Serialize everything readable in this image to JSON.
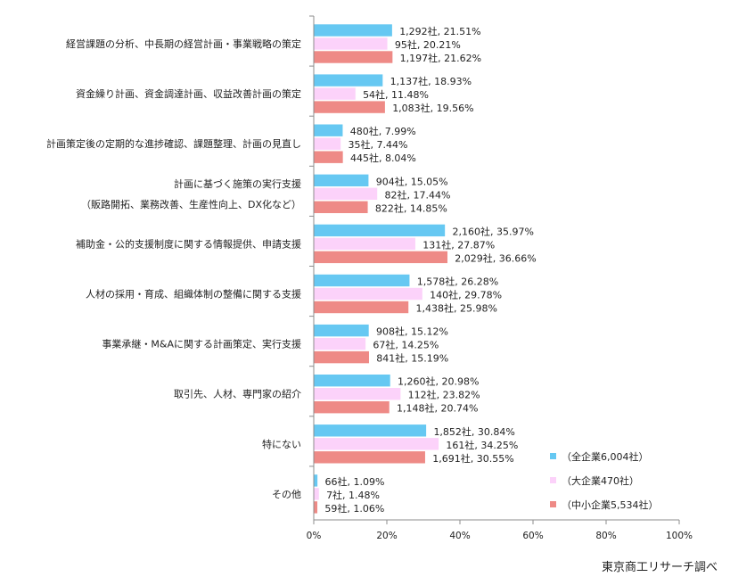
{
  "chart_data": {
    "type": "bar",
    "orientation": "horizontal",
    "categories": [
      "経営課題の分析、中長期の経営計画・事業戦略の策定",
      "資金繰り計画、資金調達計画、収益改善計画の策定",
      "計画策定後の定期的な進捗確認、課題整理、計画の見直し",
      "計画に基づく施策の実行支援\n（販路開拓、業務改善、生産性向上、DX化など）",
      "補助金・公的支援制度に関する情報提供、申請支援",
      "人材の採用・育成、組織体制の整備に関する支援",
      "事業承継・M&Aに関する計画策定、実行支援",
      "取引先、人材、専門家の紹介",
      "特にない",
      "その他"
    ],
    "series": [
      {
        "name": "（全企業6,004社）",
        "color": "#66c8f2",
        "values": [
          21.51,
          18.93,
          7.99,
          15.05,
          35.97,
          26.28,
          15.12,
          20.98,
          30.84,
          1.09
        ],
        "labels": [
          "1,292社, 21.51%",
          "1,137社, 18.93%",
          "480社, 7.99%",
          "904社, 15.05%",
          "2,160社, 35.97%",
          "1,578社, 26.28%",
          "908社, 15.12%",
          "1,260社, 20.98%",
          "1,852社, 30.84%",
          "66社, 1.09%"
        ]
      },
      {
        "name": "（大企業470社）",
        "color": "#fcd2fa",
        "values": [
          20.21,
          11.48,
          7.44,
          17.44,
          27.87,
          29.78,
          14.25,
          23.82,
          34.25,
          1.48
        ],
        "labels": [
          "95社, 20.21%",
          "54社, 11.48%",
          "35社, 7.44%",
          "82社, 17.44%",
          "131社, 27.87%",
          "140社, 29.78%",
          "67社, 14.25%",
          "112社, 23.82%",
          "161社, 34.25%",
          "7社, 1.48%"
        ]
      },
      {
        "name": "（中小企業5,534社）",
        "color": "#ee8a86",
        "values": [
          21.62,
          19.56,
          8.04,
          14.85,
          36.66,
          25.98,
          15.19,
          20.74,
          30.55,
          1.06
        ],
        "labels": [
          "1,197社, 21.62%",
          "1,083社, 19.56%",
          "445社, 8.04%",
          "822社, 14.85%",
          "2,029社, 36.66%",
          "1,438社, 25.98%",
          "841社, 15.19%",
          "1,148社, 20.74%",
          "1,691社, 30.55%",
          "59社, 1.06%"
        ]
      }
    ],
    "xlim": [
      0,
      100
    ],
    "xticks": [
      "0%",
      "20%",
      "40%",
      "60%",
      "80%",
      "100%"
    ],
    "grid": false,
    "legend_position": "bottom-right"
  },
  "source": "東京商工リサーチ調べ"
}
